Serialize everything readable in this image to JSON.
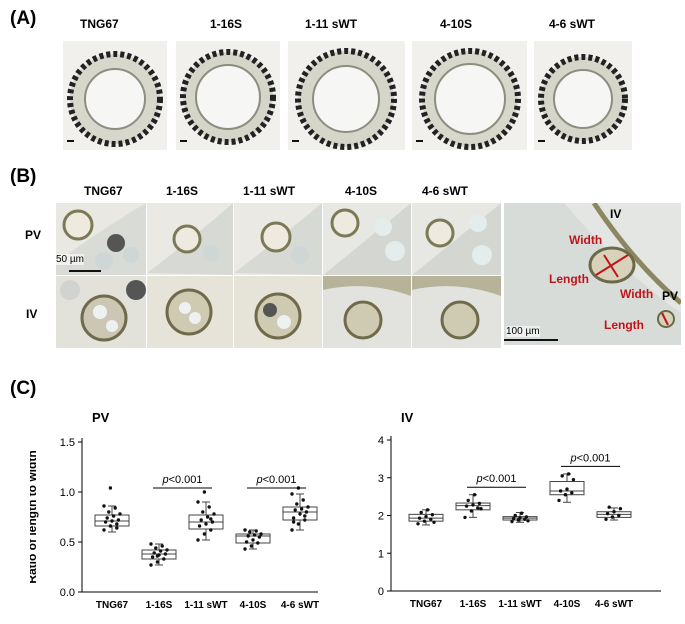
{
  "panelA": {
    "letter": "(A)",
    "samples": [
      "TNG67",
      "1-16S",
      "1-11 sWT",
      "4-10S",
      "4-6 sWT"
    ]
  },
  "panelB": {
    "letter": "(B)",
    "samples": [
      "TNG67",
      "1-16S",
      "1-11 sWT",
      "4-10S",
      "4-6 sWT"
    ],
    "rows": [
      "PV",
      "IV"
    ],
    "scale_small": "50 µm",
    "scale_large": "100 µm",
    "overview": {
      "iv": "IV",
      "pv": "PV",
      "width_label_iv": "Width",
      "length_label_iv": "Length",
      "width_label_pv": "Width",
      "length_label_pv": "Length",
      "annotation_color": "#c0141b"
    }
  },
  "panelC": {
    "letter": "(C)"
  },
  "chart_data": [
    {
      "type": "box",
      "title": "PV",
      "ylabel": "Ratio of length to width",
      "ylim": [
        0,
        1.5
      ],
      "yticks": [
        "0.0",
        "0.5",
        "1.0",
        "1.5"
      ],
      "categories": [
        "TNG67",
        "1-16S",
        "1-11 sWT",
        "4-10S",
        "4-6 sWT"
      ],
      "boxes": [
        {
          "q1": 0.66,
          "median": 0.71,
          "q3": 0.77,
          "min": 0.6,
          "max": 0.86
        },
        {
          "q1": 0.33,
          "median": 0.38,
          "q3": 0.42,
          "min": 0.27,
          "max": 0.48
        },
        {
          "q1": 0.63,
          "median": 0.7,
          "q3": 0.77,
          "min": 0.52,
          "max": 0.9
        },
        {
          "q1": 0.49,
          "median": 0.56,
          "q3": 0.58,
          "min": 0.43,
          "max": 0.62
        },
        {
          "q1": 0.72,
          "median": 0.8,
          "q3": 0.85,
          "min": 0.62,
          "max": 0.98
        }
      ],
      "points": [
        [
          0.62,
          0.66,
          0.68,
          0.7,
          0.71,
          0.72,
          0.74,
          0.76,
          0.78,
          0.8,
          0.84,
          0.86,
          1.04,
          0.64
        ],
        [
          0.27,
          0.3,
          0.33,
          0.35,
          0.37,
          0.38,
          0.39,
          0.41,
          0.42,
          0.44,
          0.46,
          0.48,
          0.36
        ],
        [
          0.52,
          0.58,
          0.62,
          0.66,
          0.68,
          0.7,
          0.72,
          0.75,
          0.78,
          0.8,
          0.85,
          0.9,
          1.0,
          0.73
        ],
        [
          0.43,
          0.46,
          0.49,
          0.5,
          0.52,
          0.55,
          0.56,
          0.57,
          0.58,
          0.6,
          0.61,
          0.62
        ],
        [
          0.62,
          0.68,
          0.72,
          0.74,
          0.78,
          0.8,
          0.82,
          0.83,
          0.85,
          0.88,
          0.92,
          0.98,
          1.04,
          0.76,
          0.7
        ]
      ],
      "comparisons": [
        {
          "from": 1,
          "to": 2,
          "y": 1.04,
          "label_prefix": "p",
          "label_rest": "<0.001"
        },
        {
          "from": 3,
          "to": 4,
          "y": 1.04,
          "label_prefix": "p",
          "label_rest": "<0.001"
        }
      ]
    },
    {
      "type": "box",
      "title": "IV",
      "ylabel": "Ratio of length to width",
      "ylim": [
        0,
        4
      ],
      "yticks": [
        "0",
        "1",
        "2",
        "3",
        "4"
      ],
      "categories": [
        "TNG67",
        "1-16S",
        "1-11 sWT",
        "4-10S",
        "4-6 sWT"
      ],
      "boxes": [
        {
          "q1": 1.85,
          "median": 1.93,
          "q3": 2.03,
          "min": 1.75,
          "max": 2.15
        },
        {
          "q1": 2.15,
          "median": 2.26,
          "q3": 2.33,
          "min": 1.95,
          "max": 2.55
        },
        {
          "q1": 1.88,
          "median": 1.93,
          "q3": 1.97,
          "min": 1.82,
          "max": 2.08
        },
        {
          "q1": 2.55,
          "median": 2.65,
          "q3": 2.9,
          "min": 2.35,
          "max": 3.1
        },
        {
          "q1": 1.95,
          "median": 2.03,
          "q3": 2.1,
          "min": 1.88,
          "max": 2.2
        }
      ],
      "points": [
        [
          1.78,
          1.85,
          1.9,
          1.93,
          1.97,
          2.02,
          2.08,
          2.15,
          1.82
        ],
        [
          1.95,
          2.12,
          2.2,
          2.25,
          2.28,
          2.32,
          2.4,
          2.55,
          2.18
        ],
        [
          1.84,
          1.88,
          1.9,
          1.92,
          1.94,
          1.96,
          2.0,
          2.06,
          1.86
        ],
        [
          2.4,
          2.55,
          2.6,
          2.65,
          2.7,
          2.95,
          3.05,
          3.1
        ],
        [
          1.9,
          1.96,
          2.0,
          2.05,
          2.1,
          2.18,
          2.22
        ]
      ],
      "comparisons": [
        {
          "from": 1,
          "to": 2,
          "y": 2.75,
          "label_prefix": "p",
          "label_rest": "<0.001"
        },
        {
          "from": 3,
          "to": 4,
          "y": 3.3,
          "label_prefix": "p",
          "label_rest": "<0.001"
        }
      ]
    }
  ]
}
